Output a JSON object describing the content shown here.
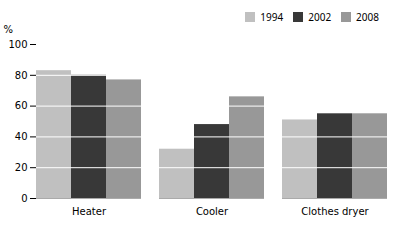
{
  "chart_data": {
    "type": "bar",
    "categories": [
      "Heater",
      "Cooler",
      "Clothes dryer"
    ],
    "series": [
      {
        "name": "1994",
        "color": "#c0c0c0",
        "values": [
          83,
          32,
          51
        ]
      },
      {
        "name": "2002",
        "color": "#383838",
        "values": [
          80,
          48,
          55
        ]
      },
      {
        "name": "2008",
        "color": "#989898",
        "values": [
          77,
          66,
          55
        ]
      }
    ],
    "ylabel": "%",
    "ylim": [
      0,
      100
    ],
    "yticks": [
      0,
      20,
      40,
      60,
      80,
      100
    ],
    "grid": true,
    "legend": "upper right"
  }
}
